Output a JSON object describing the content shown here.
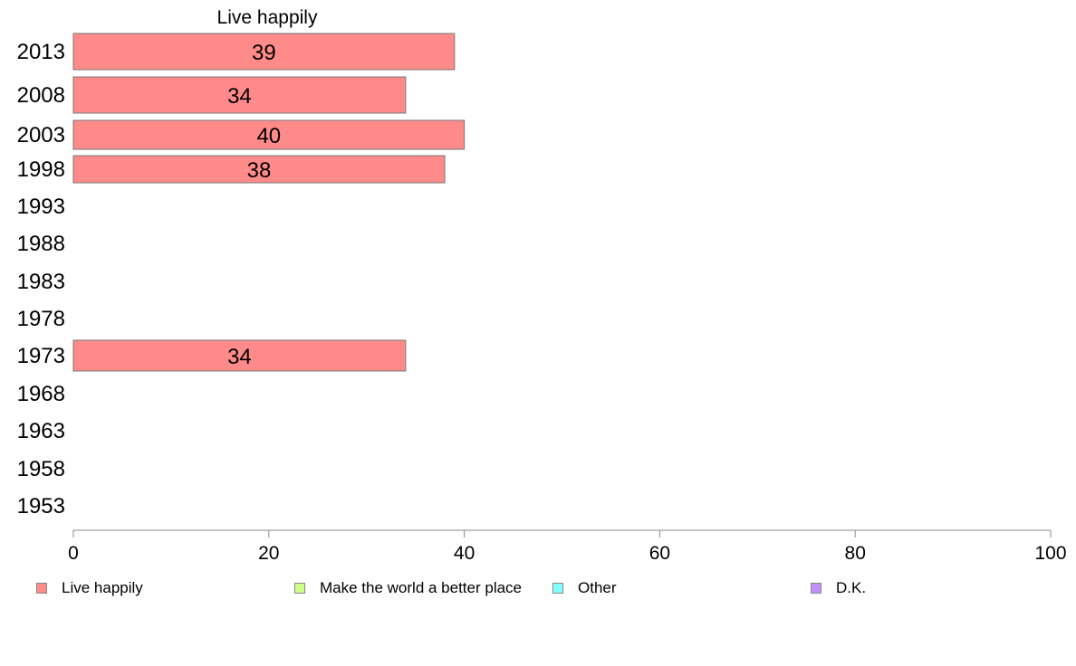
{
  "chart_data": {
    "type": "bar",
    "orientation": "horizontal",
    "title": "Live happily",
    "categories": [
      "2013",
      "2008",
      "2003",
      "1998",
      "1993",
      "1988",
      "1983",
      "1978",
      "1973",
      "1968",
      "1963",
      "1958",
      "1953"
    ],
    "series": [
      {
        "name": "Live happily",
        "color": "#ff8a8a",
        "values": [
          39,
          34,
          40,
          38,
          null,
          null,
          null,
          null,
          34,
          null,
          null,
          null,
          null
        ]
      }
    ],
    "xlim": [
      0,
      100
    ],
    "xticks": [
      0,
      20,
      40,
      60,
      80,
      100
    ],
    "grid": false,
    "legend_position": "bottom",
    "legend": [
      {
        "label": "Live happily",
        "color": "#ff8a8a"
      },
      {
        "label": "Make the world a better place",
        "color": "#ccff88"
      },
      {
        "label": "Other",
        "color": "#80ffff"
      },
      {
        "label": "D.K.",
        "color": "#c090ff"
      }
    ]
  }
}
